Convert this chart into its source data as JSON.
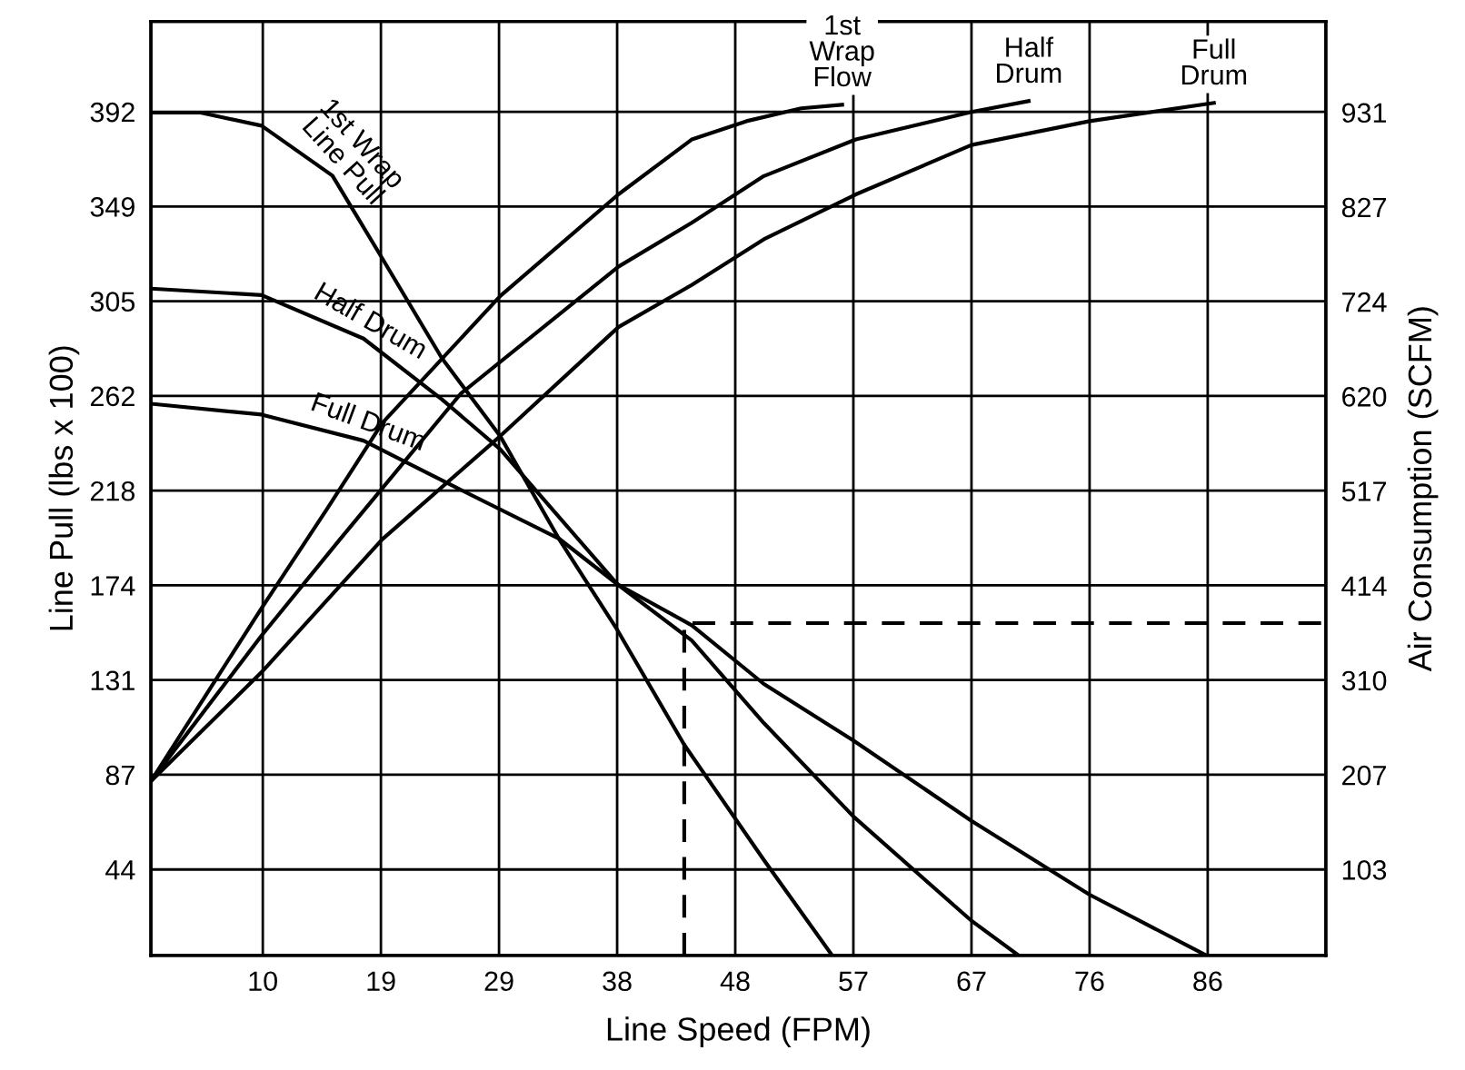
{
  "chart_data": {
    "type": "line",
    "xlabel": "Line Speed (FPM)",
    "ylabel": "Line Pull (lbs x 100)",
    "y2label": "Air Consumption (SCFM)",
    "xlim": [
      0.5,
      95
    ],
    "ylim": [
      4,
      434
    ],
    "y2lim": [
      9.5,
      1030
    ],
    "xticks": [
      {
        "value": 9.5,
        "label": "10"
      },
      19,
      {
        "value": 28.5,
        "label": "29"
      },
      38,
      {
        "value": 47.5,
        "label": "48"
      },
      57,
      {
        "value": 66.5,
        "label": "67"
      },
      76,
      {
        "value": 85.5,
        "label": "86"
      }
    ],
    "yticks": [
      {
        "value": 43.6,
        "label": "44"
      },
      {
        "value": 87.2,
        "label": "87"
      },
      {
        "value": 130.8,
        "label": "131"
      },
      {
        "value": 174.4,
        "label": "174"
      },
      218,
      {
        "value": 261.6,
        "label": "262"
      },
      {
        "value": 305.2,
        "label": "305"
      },
      {
        "value": 348.8,
        "label": "349"
      },
      {
        "value": 392.4,
        "label": "392"
      }
    ],
    "y2ticks": [
      {
        "value": 103.4,
        "label": "103"
      },
      {
        "value": 206.8,
        "label": "207"
      },
      {
        "value": 310.2,
        "label": "310"
      },
      {
        "value": 413.6,
        "label": "414"
      },
      517,
      {
        "value": 620.4,
        "label": "620"
      },
      {
        "value": 723.8,
        "label": "724"
      },
      {
        "value": 827.2,
        "label": "827"
      },
      {
        "value": 930.6,
        "label": "931"
      }
    ],
    "grid": true,
    "marker": "none",
    "line_style": "solid",
    "series": [
      {
        "name": "1st Wrap\nLine Pull",
        "color": "#000000",
        "x": [
          0.5,
          4.5,
          9.4,
          15.1,
          19.1,
          23.9,
          28.6,
          33.3,
          38.0,
          43.4,
          49.8,
          55.3
        ],
        "values": [
          392,
          392,
          386,
          363,
          325,
          279,
          243,
          196,
          154,
          101,
          48,
          4
        ]
      },
      {
        "name": "Half Drum",
        "color": "#000000",
        "x": [
          0.5,
          9.4,
          17.6,
          23.9,
          28.6,
          38.0,
          44.0,
          49.8,
          57.0,
          66.5,
          70.3
        ],
        "values": [
          311,
          308,
          288,
          260,
          237,
          175,
          149,
          111,
          68,
          20,
          4
        ]
      },
      {
        "name": "Full Drum",
        "color": "#000000",
        "x": [
          0.5,
          9.4,
          17.6,
          24.5,
          33.3,
          38.0,
          44.0,
          49.8,
          57.0,
          66.5,
          76.0,
          85.4
        ],
        "values": [
          258,
          253,
          241,
          221,
          196,
          175,
          156,
          129,
          103,
          66,
          32,
          4
        ]
      },
      {
        "name": "1st\nWrap\nFlow",
        "color": "#000000",
        "axis": "y2",
        "x": [
          0.5,
          9.4,
          14.7,
          19.1,
          28.6,
          38.1,
          44.0,
          48.4,
          52.8,
          56.1
        ],
        "values": [
          200,
          389,
          498,
          591,
          730,
          841,
          901,
          921,
          935,
          939
        ]
      },
      {
        "name": "Half\nDrum",
        "color": "#000000",
        "axis": "y2",
        "x": [
          0.5,
          9.4,
          15.7,
          25.4,
          38.1,
          44.0,
          49.8,
          57.2,
          66.5,
          71.1
        ],
        "values": [
          200,
          359,
          464,
          623,
          762,
          810,
          861,
          901,
          931,
          943
        ]
      },
      {
        "name": "Full\nDrum",
        "color": "#000000",
        "axis": "y2",
        "x": [
          0.5,
          9.4,
          19.1,
          28.6,
          38.1,
          44.0,
          49.8,
          57.2,
          66.5,
          76.0,
          86.0
        ],
        "values": [
          200,
          319,
          464,
          577,
          696,
          742,
          792,
          841,
          895,
          921,
          941
        ]
      },
      {
        "color": "#000000",
        "line_style": "dashed",
        "x": [
          43.4,
          43.4,
          95
        ],
        "values": [
          4,
          157,
          157
        ]
      }
    ]
  }
}
